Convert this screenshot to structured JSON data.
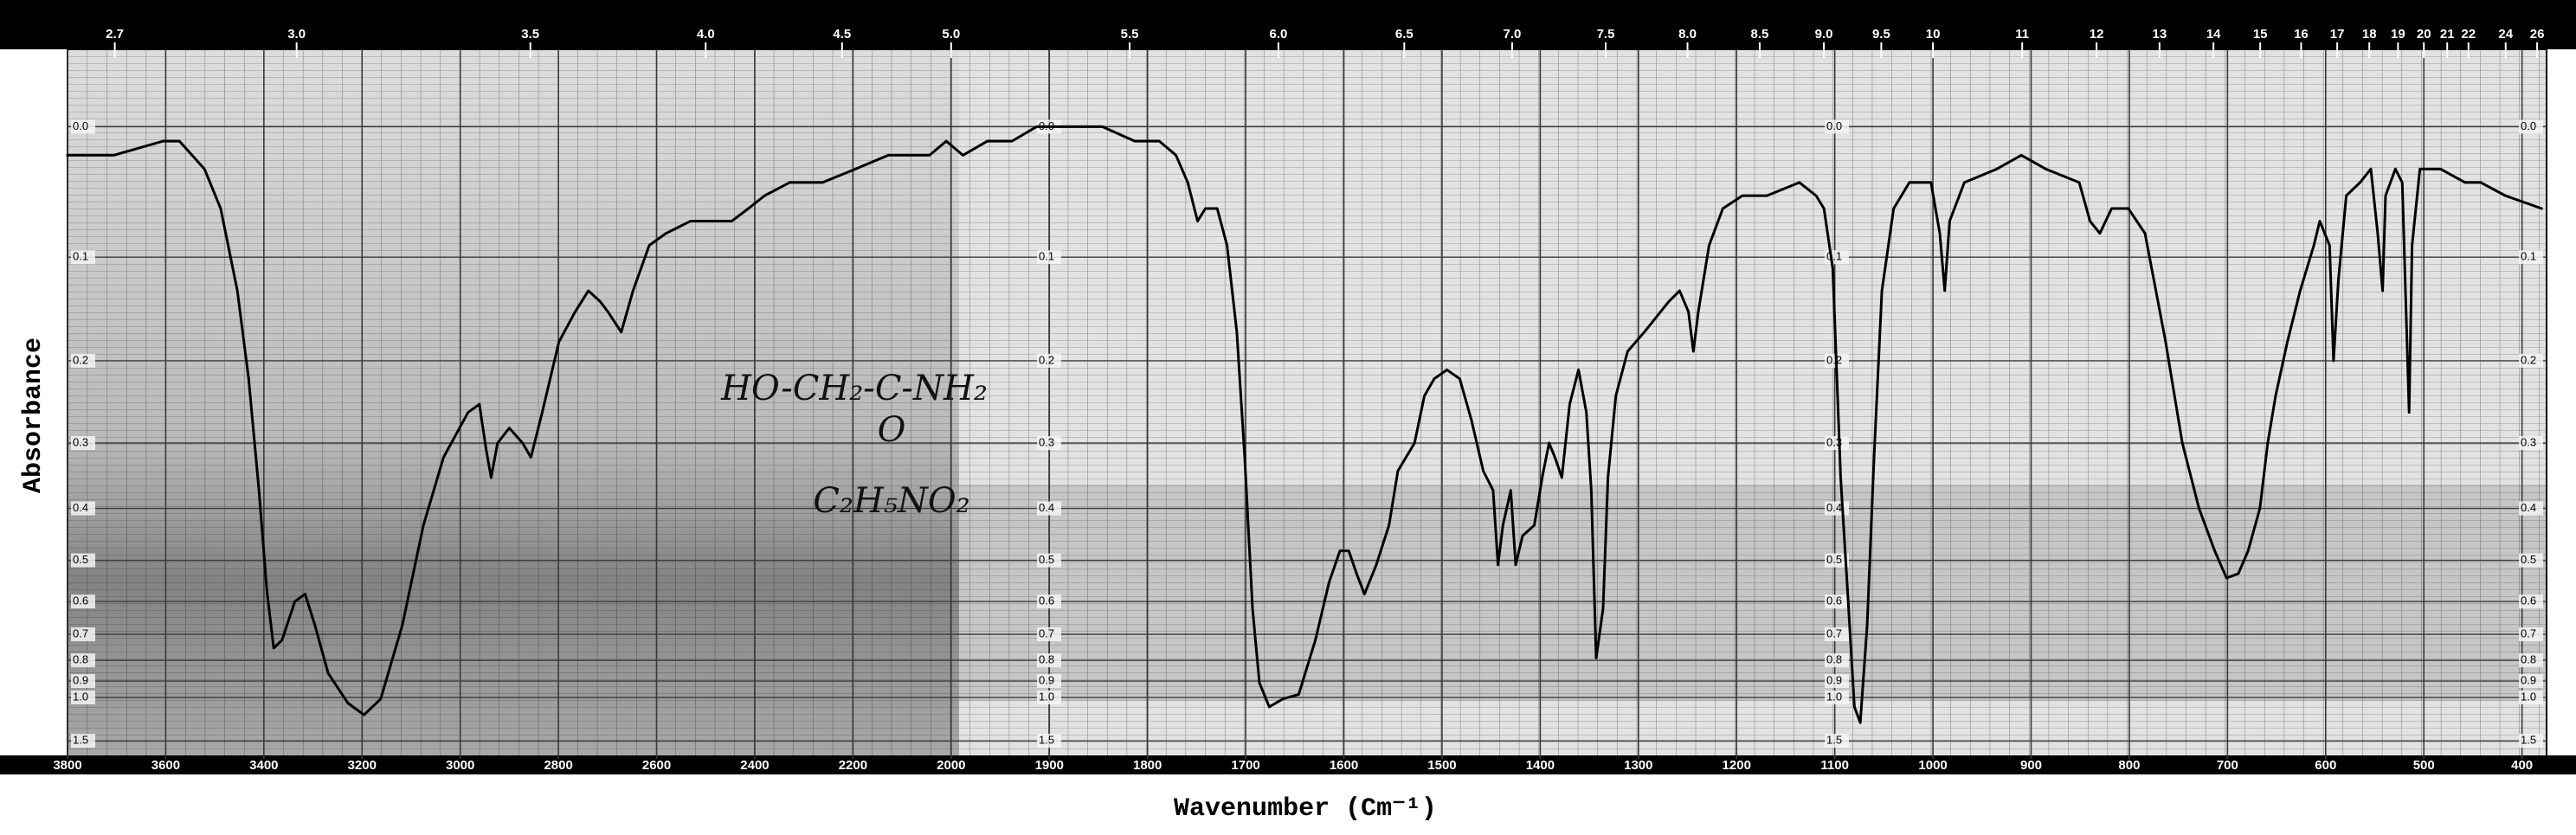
{
  "chart_data": {
    "type": "line",
    "xlabel": "Wavenumber (Cm⁻¹)",
    "ylabel": "Absorbance",
    "annotations": [
      "HO-CH₂-C-NH₂",
      "O",
      "C₂H₅NO₂"
    ],
    "color": "#000000",
    "grid": true,
    "yscale": "transmittance",
    "xlim": [
      3800,
      375
    ],
    "xticks": [
      3800,
      3600,
      3400,
      3200,
      3000,
      2800,
      2600,
      2400,
      2200,
      2000,
      1900,
      1800,
      1700,
      1600,
      1500,
      1400,
      1300,
      1200,
      1100,
      1000,
      900,
      800,
      700,
      600,
      500,
      400
    ],
    "x2ticks": [
      2.7,
      {
        "value": 3,
        "label": "3.0"
      },
      3.5,
      {
        "value": 4,
        "label": "4.0"
      },
      4.5,
      {
        "value": 5,
        "label": "5.0"
      },
      5.5,
      {
        "value": 6,
        "label": "6.0"
      },
      6.5,
      {
        "value": 7,
        "label": "7.0"
      },
      7.5,
      {
        "value": 8,
        "label": "8.0"
      },
      8.5,
      {
        "value": 9,
        "label": "9.0"
      },
      9.5,
      10,
      11,
      12,
      13,
      14,
      15,
      16,
      17,
      18,
      19,
      20,
      21,
      22,
      24,
      26
    ],
    "ylim": [
      -0.05,
      2.5
    ],
    "yticks": [
      {
        "value": 0,
        "label": "0.0"
      },
      0.1,
      0.2,
      0.3,
      0.4,
      0.5,
      0.6,
      0.7,
      0.8,
      0.9,
      {
        "value": 1,
        "label": "1.0"
      },
      1.5
    ],
    "x": [
      3800,
      3706,
      3605,
      3572,
      3521,
      3488,
      3454,
      3431,
      3410,
      3394,
      3380,
      3363,
      3337,
      3316,
      3296,
      3269,
      3229,
      3196,
      3162,
      3118,
      3075,
      3034,
      2984,
      2961,
      2947,
      2937,
      2924,
      2900,
      2873,
      2856,
      2833,
      2799,
      2766,
      2739,
      2715,
      2699,
      2672,
      2648,
      2615,
      2581,
      2531,
      2480,
      2447,
      2413,
      2380,
      2329,
      2262,
      2195,
      2128,
      2077,
      2044,
      2010,
      1988,
      1963,
      1938,
      1913,
      1880,
      1846,
      1813,
      1788,
      1771,
      1759,
      1749,
      1741,
      1729,
      1719,
      1709,
      1701,
      1693,
      1686,
      1676,
      1662,
      1646,
      1629,
      1615,
      1604,
      1595,
      1587,
      1579,
      1567,
      1554,
      1545,
      1528,
      1518,
      1508,
      1495,
      1482,
      1470,
      1458,
      1448,
      1443,
      1438,
      1430,
      1425,
      1418,
      1406,
      1398,
      1391,
      1385,
      1378,
      1370,
      1361,
      1353,
      1348,
      1343,
      1336,
      1331,
      1323,
      1311,
      1294,
      1269,
      1258,
      1249,
      1244,
      1239,
      1228,
      1214,
      1194,
      1169,
      1136,
      1119,
      1111,
      1102,
      1094,
      1087,
      1080,
      1074,
      1067,
      1060,
      1052,
      1040,
      1024,
      1002,
      993,
      988,
      983,
      968,
      935,
      910,
      885,
      851,
      840,
      830,
      818,
      801,
      784,
      763,
      746,
      729,
      713,
      701,
      689,
      679,
      667,
      659,
      651,
      639,
      626,
      612,
      606,
      596,
      592,
      587,
      579,
      565,
      554,
      547,
      542,
      539,
      529,
      522,
      515,
      512,
      504,
      483,
      458,
      442,
      417,
      380
    ],
    "values": [
      0.02,
      0.02,
      0.01,
      0.01,
      0.03,
      0.06,
      0.13,
      0.22,
      0.37,
      0.57,
      0.75,
      0.72,
      0.6,
      0.58,
      0.67,
      0.86,
      1.04,
      1.14,
      1.01,
      0.67,
      0.43,
      0.32,
      0.26,
      0.25,
      0.31,
      0.35,
      0.3,
      0.28,
      0.3,
      0.32,
      0.26,
      0.18,
      0.15,
      0.13,
      0.14,
      0.15,
      0.17,
      0.13,
      0.09,
      0.08,
      0.07,
      0.07,
      0.07,
      0.06,
      0.05,
      0.04,
      0.04,
      0.03,
      0.02,
      0.02,
      0.02,
      0.01,
      0.02,
      0.01,
      0.01,
      0,
      0,
      0,
      0.01,
      0.01,
      0.02,
      0.04,
      0.07,
      0.06,
      0.06,
      0.09,
      0.17,
      0.32,
      0.62,
      0.91,
      1.07,
      1.01,
      0.98,
      0.72,
      0.55,
      0.48,
      0.48,
      0.53,
      0.58,
      0.51,
      0.43,
      0.34,
      0.3,
      0.24,
      0.22,
      0.21,
      0.22,
      0.27,
      0.34,
      0.37,
      0.51,
      0.43,
      0.37,
      0.51,
      0.45,
      0.43,
      0.35,
      0.3,
      0.32,
      0.35,
      0.25,
      0.21,
      0.26,
      0.37,
      0.79,
      0.62,
      0.35,
      0.24,
      0.19,
      0.17,
      0.14,
      0.13,
      0.15,
      0.19,
      0.15,
      0.09,
      0.06,
      0.05,
      0.05,
      0.04,
      0.05,
      0.06,
      0.11,
      0.35,
      0.57,
      1.07,
      1.22,
      0.67,
      0.32,
      0.13,
      0.06,
      0.04,
      0.04,
      0.08,
      0.13,
      0.07,
      0.04,
      0.03,
      0.02,
      0.03,
      0.04,
      0.07,
      0.08,
      0.06,
      0.06,
      0.08,
      0.18,
      0.3,
      0.4,
      0.48,
      0.54,
      0.53,
      0.48,
      0.4,
      0.3,
      0.24,
      0.18,
      0.13,
      0.09,
      0.07,
      0.09,
      0.2,
      0.12,
      0.05,
      0.04,
      0.03,
      0.08,
      0.13,
      0.05,
      0.03,
      0.04,
      0.26,
      0.09,
      0.03,
      0.03,
      0.04,
      0.04,
      0.05,
      0.06
    ]
  }
}
